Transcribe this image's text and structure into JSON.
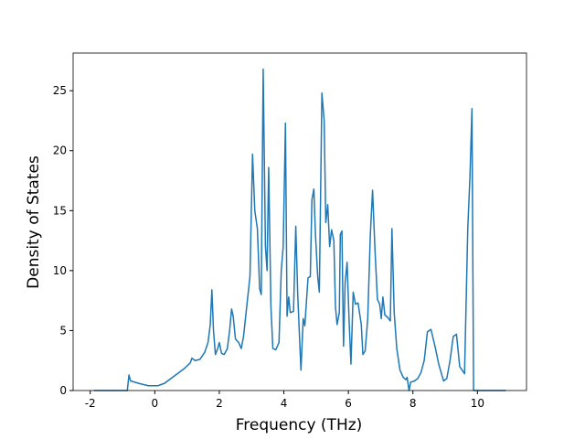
{
  "chart_data": {
    "type": "line",
    "xlabel": "Frequency (THz)",
    "ylabel": "Density of States",
    "x": [
      -1.89,
      -0.85,
      -0.8,
      -0.75,
      -0.5,
      -0.2,
      0.1,
      0.3,
      0.6,
      0.9,
      1.1,
      1.15,
      1.25,
      1.4,
      1.55,
      1.65,
      1.72,
      1.77,
      1.82,
      1.88,
      1.95,
      2.0,
      2.07,
      2.15,
      2.25,
      2.32,
      2.38,
      2.43,
      2.5,
      2.6,
      2.68,
      2.75,
      2.85,
      2.95,
      3.03,
      3.1,
      3.18,
      3.25,
      3.3,
      3.36,
      3.43,
      3.48,
      3.53,
      3.6,
      3.66,
      3.75,
      3.85,
      3.92,
      3.98,
      4.05,
      4.1,
      4.15,
      4.2,
      4.3,
      4.37,
      4.43,
      4.53,
      4.6,
      4.65,
      4.75,
      4.82,
      4.87,
      4.93,
      4.98,
      5.05,
      5.1,
      5.18,
      5.25,
      5.3,
      5.36,
      5.42,
      5.48,
      5.55,
      5.6,
      5.65,
      5.72,
      5.75,
      5.8,
      5.85,
      5.9,
      5.96,
      6.02,
      6.08,
      6.15,
      6.22,
      6.3,
      6.4,
      6.45,
      6.52,
      6.6,
      6.68,
      6.75,
      6.82,
      6.9,
      6.97,
      7.02,
      7.07,
      7.13,
      7.22,
      7.3,
      7.35,
      7.42,
      7.5,
      7.6,
      7.7,
      7.78,
      7.82,
      7.88,
      7.93,
      8.05,
      8.15,
      8.25,
      8.35,
      8.45,
      8.56,
      8.7,
      8.8,
      8.95,
      9.05,
      9.15,
      9.25,
      9.35,
      9.45,
      9.6,
      9.7,
      9.77,
      9.83,
      9.88,
      10.88
    ],
    "series": [
      {
        "color": "#1f77b4",
        "values": [
          0,
          0,
          1.3,
          0.8,
          0.6,
          0.4,
          0.4,
          0.6,
          1.2,
          1.8,
          2.3,
          2.7,
          2.5,
          2.6,
          3.2,
          4.0,
          5.5,
          8.4,
          5.0,
          3.0,
          3.5,
          4.0,
          3.1,
          3.0,
          3.5,
          5.0,
          6.8,
          6.2,
          4.3,
          4.0,
          3.5,
          4.5,
          7.0,
          9.5,
          19.7,
          15.0,
          13.5,
          8.5,
          8.0,
          26.8,
          12.0,
          10.0,
          18.6,
          7.0,
          3.5,
          3.4,
          4.0,
          10.0,
          12.0,
          22.3,
          6.2,
          7.8,
          6.5,
          6.6,
          13.7,
          8.0,
          1.7,
          6.0,
          5.4,
          9.4,
          9.5,
          15.9,
          16.8,
          13.0,
          9.5,
          8.2,
          24.8,
          22.5,
          14.0,
          15.5,
          12.0,
          13.4,
          12.5,
          7.0,
          5.5,
          6.5,
          13.0,
          13.3,
          3.7,
          9.0,
          10.7,
          6.0,
          2.2,
          8.2,
          7.2,
          7.3,
          5.5,
          3.0,
          3.3,
          6.0,
          13.0,
          16.7,
          12.0,
          7.6,
          7.2,
          6.0,
          7.8,
          6.3,
          6.1,
          5.8,
          13.5,
          6.5,
          3.5,
          1.7,
          1.1,
          0.9,
          1.1,
          0,
          0.7,
          0.8,
          1.0,
          1.5,
          2.5,
          4.9,
          5.1,
          3.5,
          2.2,
          0.8,
          1.0,
          2.5,
          4.5,
          4.7,
          2.0,
          1.4,
          13.5,
          18,
          23.5,
          0,
          0
        ]
      }
    ],
    "xlim": [
      -2.53,
      11.52
    ],
    "ylim": [
      0,
      28.14
    ],
    "xticks": [
      -2,
      0,
      2,
      4,
      6,
      8,
      10
    ],
    "yticks": [
      0,
      5,
      10,
      15,
      20,
      25
    ]
  }
}
